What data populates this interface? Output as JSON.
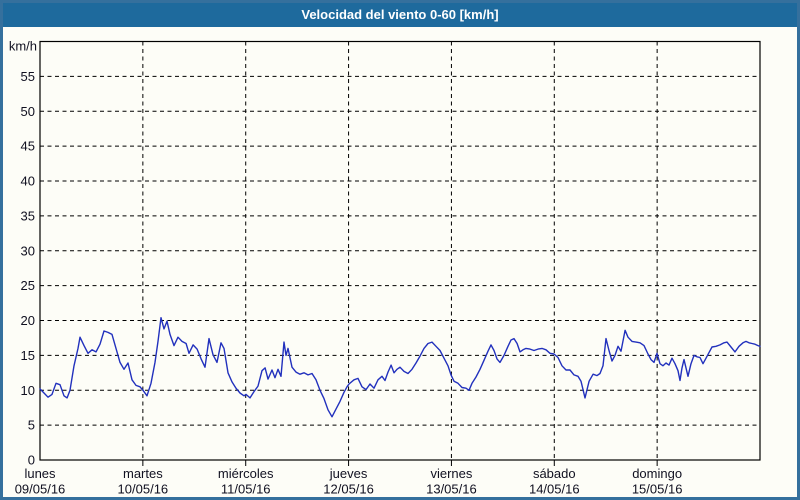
{
  "window": {
    "title": "Velocidad del viento 0-60 [km/h]"
  },
  "colors": {
    "title_bar": "#1e6a9d",
    "title_bar_top_edge": "#175380",
    "title_text": "#ffffff",
    "frame_border": "#35709d",
    "background": "#fdfdf7",
    "axis": "#000000",
    "grid": "#000000",
    "axis_text": "#101020",
    "series_line": "#2231bd"
  },
  "chart_data": {
    "type": "line",
    "title": "Velocidad del viento 0-60 [km/h]",
    "ylabel": "km/h",
    "xlabel": "",
    "ylim": [
      0,
      60
    ],
    "yticks": [
      0,
      5,
      10,
      15,
      20,
      25,
      30,
      35,
      40,
      45,
      50,
      55
    ],
    "grid": "dashed",
    "legend": "none",
    "x_days": [
      {
        "name": "lunes",
        "date": "09/05/16"
      },
      {
        "name": "martes",
        "date": "10/05/16"
      },
      {
        "name": "miércoles",
        "date": "11/05/16"
      },
      {
        "name": "jueves",
        "date": "12/05/16"
      },
      {
        "name": "viernes",
        "date": "13/05/16"
      },
      {
        "name": "sábado",
        "date": "14/05/16"
      },
      {
        "name": "domingo",
        "date": "15/05/16"
      }
    ],
    "series": [
      {
        "name": "Velocidad del viento",
        "unit": "km/h",
        "points": [
          [
            0.0,
            10.2
          ],
          [
            0.039,
            9.6
          ],
          [
            0.078,
            9.0
          ],
          [
            0.117,
            9.4
          ],
          [
            0.156,
            11.0
          ],
          [
            0.194,
            10.8
          ],
          [
            0.233,
            9.2
          ],
          [
            0.263,
            8.9
          ],
          [
            0.292,
            10.0
          ],
          [
            0.331,
            13.5
          ],
          [
            0.369,
            16.0
          ],
          [
            0.389,
            17.6
          ],
          [
            0.428,
            16.4
          ],
          [
            0.467,
            15.3
          ],
          [
            0.506,
            15.8
          ],
          [
            0.544,
            15.5
          ],
          [
            0.583,
            16.6
          ],
          [
            0.622,
            18.5
          ],
          [
            0.661,
            18.3
          ],
          [
            0.7,
            18.0
          ],
          [
            0.739,
            16.0
          ],
          [
            0.778,
            14.0
          ],
          [
            0.817,
            13.0
          ],
          [
            0.856,
            13.9
          ],
          [
            0.894,
            11.5
          ],
          [
            0.933,
            10.7
          ],
          [
            0.972,
            10.5
          ],
          [
            1.001,
            10.0
          ],
          [
            1.04,
            9.2
          ],
          [
            1.079,
            11.0
          ],
          [
            1.118,
            14.0
          ],
          [
            1.147,
            17.0
          ],
          [
            1.176,
            20.4
          ],
          [
            1.206,
            18.8
          ],
          [
            1.235,
            19.9
          ],
          [
            1.264,
            18.0
          ],
          [
            1.303,
            16.4
          ],
          [
            1.342,
            17.6
          ],
          [
            1.381,
            17.0
          ],
          [
            1.42,
            16.7
          ],
          [
            1.449,
            15.3
          ],
          [
            1.488,
            16.5
          ],
          [
            1.527,
            15.9
          ],
          [
            1.566,
            14.5
          ],
          [
            1.604,
            13.3
          ],
          [
            1.643,
            17.4
          ],
          [
            1.682,
            15.1
          ],
          [
            1.721,
            14.0
          ],
          [
            1.76,
            16.8
          ],
          [
            1.789,
            16.0
          ],
          [
            1.828,
            12.5
          ],
          [
            1.867,
            11.2
          ],
          [
            1.906,
            10.3
          ],
          [
            1.944,
            9.6
          ],
          [
            1.983,
            9.2
          ],
          [
            2.003,
            9.4
          ],
          [
            2.042,
            8.9
          ],
          [
            2.081,
            9.8
          ],
          [
            2.119,
            10.6
          ],
          [
            2.158,
            12.8
          ],
          [
            2.188,
            13.2
          ],
          [
            2.217,
            11.6
          ],
          [
            2.256,
            12.9
          ],
          [
            2.285,
            11.8
          ],
          [
            2.314,
            13.0
          ],
          [
            2.343,
            12.0
          ],
          [
            2.372,
            16.9
          ],
          [
            2.392,
            15.0
          ],
          [
            2.411,
            16.0
          ],
          [
            2.45,
            13.3
          ],
          [
            2.489,
            12.6
          ],
          [
            2.528,
            12.3
          ],
          [
            2.567,
            12.5
          ],
          [
            2.606,
            12.2
          ],
          [
            2.644,
            12.4
          ],
          [
            2.683,
            11.5
          ],
          [
            2.722,
            10.0
          ],
          [
            2.761,
            8.8
          ],
          [
            2.8,
            7.2
          ],
          [
            2.839,
            6.2
          ],
          [
            2.878,
            7.3
          ],
          [
            2.917,
            8.4
          ],
          [
            2.956,
            9.7
          ],
          [
            2.985,
            10.5
          ],
          [
            3.004,
            10.9
          ],
          [
            3.053,
            11.5
          ],
          [
            3.092,
            11.7
          ],
          [
            3.131,
            10.5
          ],
          [
            3.169,
            10.1
          ],
          [
            3.208,
            10.9
          ],
          [
            3.247,
            10.3
          ],
          [
            3.286,
            11.5
          ],
          [
            3.325,
            12.0
          ],
          [
            3.354,
            11.4
          ],
          [
            3.383,
            12.6
          ],
          [
            3.413,
            13.6
          ],
          [
            3.442,
            12.5
          ],
          [
            3.471,
            13.0
          ],
          [
            3.5,
            13.3
          ],
          [
            3.539,
            12.7
          ],
          [
            3.578,
            12.4
          ],
          [
            3.617,
            13.0
          ],
          [
            3.656,
            13.9
          ],
          [
            3.694,
            14.9
          ],
          [
            3.733,
            16.0
          ],
          [
            3.772,
            16.7
          ],
          [
            3.811,
            16.9
          ],
          [
            3.85,
            16.3
          ],
          [
            3.889,
            15.7
          ],
          [
            3.928,
            14.6
          ],
          [
            3.967,
            13.5
          ],
          [
            3.996,
            12.2
          ],
          [
            4.025,
            11.3
          ],
          [
            4.064,
            11.0
          ],
          [
            4.103,
            10.4
          ],
          [
            4.142,
            10.3
          ],
          [
            4.171,
            10.0
          ],
          [
            4.2,
            11.0
          ],
          [
            4.239,
            11.9
          ],
          [
            4.278,
            13.0
          ],
          [
            4.317,
            14.3
          ],
          [
            4.356,
            15.6
          ],
          [
            4.385,
            16.5
          ],
          [
            4.414,
            15.7
          ],
          [
            4.443,
            14.5
          ],
          [
            4.472,
            14.0
          ],
          [
            4.511,
            15.0
          ],
          [
            4.55,
            16.3
          ],
          [
            4.579,
            17.2
          ],
          [
            4.608,
            17.4
          ],
          [
            4.638,
            16.7
          ],
          [
            4.667,
            15.5
          ],
          [
            4.696,
            15.8
          ],
          [
            4.725,
            16.0
          ],
          [
            4.764,
            15.9
          ],
          [
            4.803,
            15.7
          ],
          [
            4.842,
            15.9
          ],
          [
            4.881,
            16.0
          ],
          [
            4.919,
            15.8
          ],
          [
            4.958,
            15.3
          ],
          [
            4.997,
            15.2
          ],
          [
            5.036,
            14.7
          ],
          [
            5.075,
            13.5
          ],
          [
            5.114,
            12.9
          ],
          [
            5.153,
            12.9
          ],
          [
            5.192,
            12.2
          ],
          [
            5.231,
            12.0
          ],
          [
            5.26,
            11.3
          ],
          [
            5.299,
            8.9
          ],
          [
            5.338,
            11.3
          ],
          [
            5.377,
            12.3
          ],
          [
            5.415,
            12.1
          ],
          [
            5.444,
            12.4
          ],
          [
            5.474,
            13.5
          ],
          [
            5.503,
            17.4
          ],
          [
            5.532,
            15.7
          ],
          [
            5.561,
            14.2
          ],
          [
            5.59,
            15.0
          ],
          [
            5.619,
            16.3
          ],
          [
            5.649,
            15.6
          ],
          [
            5.688,
            18.6
          ],
          [
            5.717,
            17.6
          ],
          [
            5.756,
            17.0
          ],
          [
            5.794,
            16.9
          ],
          [
            5.833,
            16.8
          ],
          [
            5.872,
            16.4
          ],
          [
            5.911,
            15.2
          ],
          [
            5.94,
            14.4
          ],
          [
            5.969,
            14.0
          ],
          [
            5.999,
            15.3
          ],
          [
            6.028,
            13.8
          ],
          [
            6.057,
            13.5
          ],
          [
            6.086,
            13.9
          ],
          [
            6.115,
            13.6
          ],
          [
            6.144,
            14.6
          ],
          [
            6.174,
            13.8
          ],
          [
            6.203,
            12.8
          ],
          [
            6.222,
            11.4
          ],
          [
            6.242,
            13.2
          ],
          [
            6.261,
            14.4
          ],
          [
            6.3,
            12.0
          ],
          [
            6.329,
            13.8
          ],
          [
            6.358,
            15.0
          ],
          [
            6.387,
            14.8
          ],
          [
            6.417,
            14.7
          ],
          [
            6.446,
            13.8
          ],
          [
            6.475,
            14.6
          ],
          [
            6.504,
            15.4
          ],
          [
            6.533,
            16.2
          ],
          [
            6.572,
            16.3
          ],
          [
            6.611,
            16.5
          ],
          [
            6.65,
            16.8
          ],
          [
            6.679,
            16.9
          ],
          [
            6.718,
            16.2
          ],
          [
            6.757,
            15.5
          ],
          [
            6.796,
            16.3
          ],
          [
            6.835,
            16.8
          ],
          [
            6.864,
            17.0
          ],
          [
            6.893,
            16.8
          ],
          [
            6.922,
            16.7
          ],
          [
            6.951,
            16.6
          ],
          [
            6.981,
            16.4
          ],
          [
            7.0,
            16.3
          ]
        ]
      }
    ]
  }
}
